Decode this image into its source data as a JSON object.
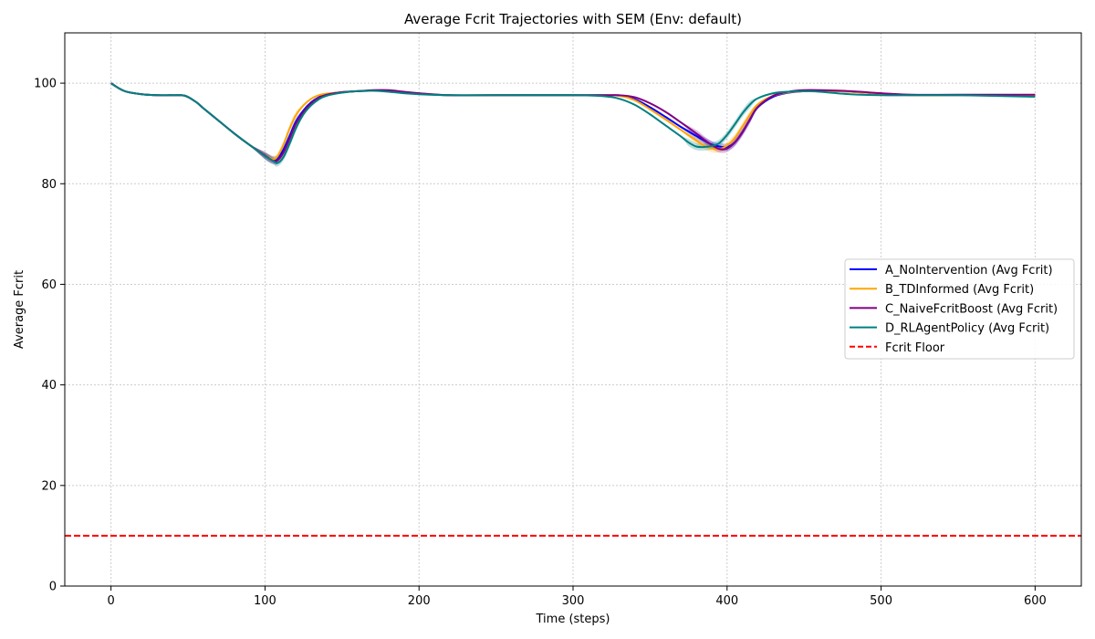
{
  "chart_data": {
    "type": "line",
    "title": "Average Fcrit Trajectories with SEM (Env: default)",
    "xlabel": "Time (steps)",
    "ylabel": "Average Fcrit",
    "xlim": [
      -30,
      630
    ],
    "ylim": [
      0,
      110
    ],
    "xticks": [
      0,
      100,
      200,
      300,
      400,
      500,
      600
    ],
    "yticks": [
      0,
      20,
      40,
      60,
      80,
      100
    ],
    "grid": true,
    "legend_position": "center-right",
    "series": [
      {
        "name": "A_NoIntervention (Avg Fcrit)",
        "color": "#0000ff",
        "x": [
          0,
          5,
          10,
          20,
          30,
          40,
          48,
          55,
          60,
          70,
          80,
          90,
          100,
          105,
          108,
          112,
          116,
          120,
          125,
          130,
          135,
          140,
          150,
          160,
          170,
          180,
          190,
          200,
          220,
          250,
          300,
          320,
          330,
          340,
          350,
          360,
          370,
          380,
          385,
          390,
          395,
          400,
          405,
          410,
          415,
          420,
          430,
          440,
          450,
          460,
          480,
          500,
          520,
          550,
          600
        ],
        "y": [
          100,
          99,
          98.3,
          97.8,
          97.6,
          97.6,
          97.5,
          96.3,
          95,
          92.5,
          90,
          87.7,
          85.6,
          84.8,
          85,
          86.8,
          89.5,
          92.3,
          94.6,
          96.2,
          97.2,
          97.8,
          98.2,
          98.4,
          98.5,
          98.5,
          98.2,
          97.9,
          97.6,
          97.6,
          97.6,
          97.6,
          97.5,
          96.8,
          95.2,
          93.3,
          91.3,
          89.5,
          88.6,
          87.8,
          87.4,
          87.3,
          88.2,
          90.3,
          92.8,
          95.2,
          97.3,
          98.1,
          98.4,
          98.5,
          98.3,
          97.9,
          97.6,
          97.6,
          97.6
        ]
      },
      {
        "name": "B_TDInformed (Avg Fcrit)",
        "color": "#ffa500",
        "x": [
          0,
          5,
          10,
          20,
          30,
          40,
          48,
          55,
          60,
          70,
          80,
          90,
          100,
          105,
          108,
          112,
          116,
          120,
          125,
          130,
          135,
          140,
          150,
          160,
          170,
          180,
          190,
          200,
          220,
          250,
          300,
          320,
          330,
          340,
          350,
          360,
          370,
          380,
          385,
          390,
          395,
          400,
          405,
          410,
          415,
          420,
          430,
          440,
          450,
          460,
          480,
          500,
          520,
          550,
          600
        ],
        "y": [
          100,
          99,
          98.3,
          97.8,
          97.6,
          97.6,
          97.5,
          96.3,
          95,
          92.5,
          90,
          87.7,
          85.6,
          84.9,
          85.4,
          87.8,
          91,
          93.6,
          95.6,
          96.9,
          97.6,
          97.9,
          98.2,
          98.4,
          98.5,
          98.5,
          98.2,
          97.9,
          97.6,
          97.6,
          97.6,
          97.6,
          97.5,
          96.6,
          94.8,
          92.8,
          90.7,
          88.6,
          87.6,
          87,
          86.9,
          87.6,
          89.1,
          91.4,
          93.8,
          95.8,
          97.5,
          98.2,
          98.4,
          98.5,
          98.3,
          97.9,
          97.6,
          97.6,
          97.6
        ]
      },
      {
        "name": "C_NaiveFcritBoost (Avg Fcrit)",
        "color": "#800080",
        "x": [
          0,
          5,
          10,
          20,
          30,
          40,
          48,
          55,
          60,
          70,
          80,
          90,
          100,
          105,
          108,
          112,
          116,
          120,
          125,
          130,
          135,
          140,
          150,
          160,
          170,
          180,
          190,
          200,
          220,
          250,
          300,
          320,
          330,
          340,
          350,
          360,
          370,
          380,
          385,
          390,
          395,
          400,
          405,
          410,
          415,
          420,
          430,
          440,
          450,
          460,
          480,
          500,
          520,
          550,
          600
        ],
        "y": [
          100,
          99,
          98.3,
          97.8,
          97.6,
          97.6,
          97.5,
          96.3,
          95,
          92.5,
          90,
          87.7,
          85.6,
          84.6,
          84.6,
          86.2,
          89,
          91.9,
          94.3,
          96,
          97.1,
          97.7,
          98.2,
          98.4,
          98.6,
          98.6,
          98.3,
          98,
          97.6,
          97.6,
          97.6,
          97.6,
          97.6,
          97.2,
          96,
          94.3,
          92.2,
          90,
          88.8,
          87.7,
          86.9,
          87,
          88.2,
          90.2,
          92.9,
          95.3,
          97.5,
          98.3,
          98.6,
          98.6,
          98.4,
          98,
          97.7,
          97.7,
          97.7
        ]
      },
      {
        "name": "D_RLAgentPolicy (Avg Fcrit)",
        "color": "#008080",
        "x": [
          0,
          5,
          10,
          20,
          30,
          40,
          48,
          55,
          60,
          70,
          80,
          90,
          100,
          105,
          108,
          112,
          116,
          120,
          125,
          130,
          135,
          140,
          150,
          160,
          170,
          180,
          190,
          200,
          220,
          250,
          300,
          320,
          330,
          340,
          350,
          360,
          370,
          375,
          380,
          385,
          390,
          395,
          400,
          405,
          410,
          415,
          420,
          430,
          440,
          450,
          460,
          480,
          500,
          520,
          550,
          600
        ],
        "y": [
          100,
          99,
          98.3,
          97.8,
          97.6,
          97.6,
          97.5,
          96.3,
          95,
          92.5,
          90,
          87.7,
          85.5,
          84.6,
          84.1,
          85.3,
          88,
          91,
          93.8,
          95.6,
          96.8,
          97.5,
          98.1,
          98.4,
          98.5,
          98.3,
          98,
          97.8,
          97.6,
          97.6,
          97.6,
          97.4,
          96.9,
          95.7,
          93.8,
          91.6,
          89.4,
          88.2,
          87.4,
          87.3,
          87.5,
          88.1,
          89.7,
          91.8,
          94,
          95.8,
          97,
          98,
          98.3,
          98.4,
          98.3,
          97.8,
          97.6,
          97.6,
          97.6,
          97.3
        ]
      }
    ],
    "reference_line": {
      "name": "Fcrit Floor",
      "y": 10,
      "color": "#ff0000",
      "style": "dashed"
    }
  }
}
